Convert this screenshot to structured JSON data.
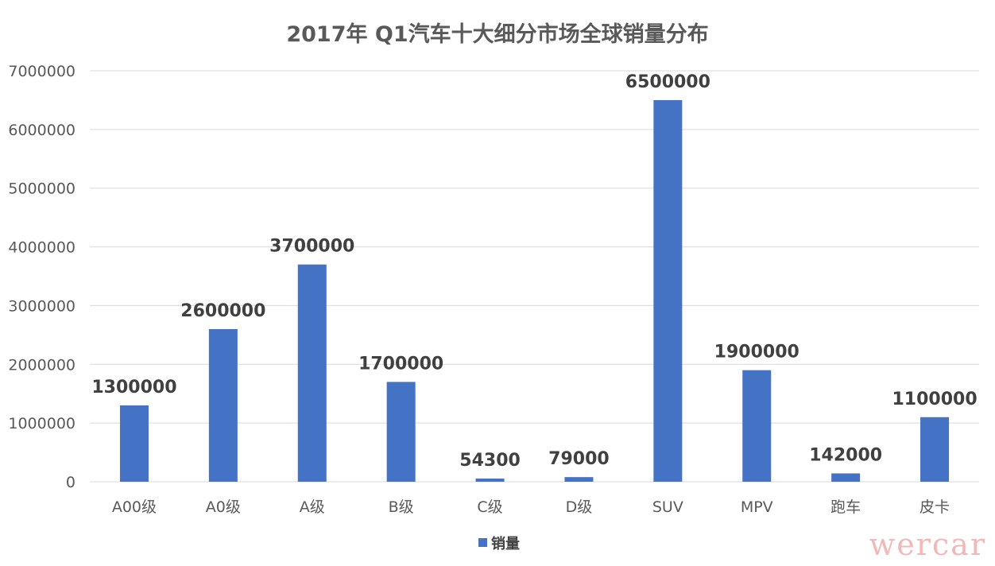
{
  "chart_data": {
    "type": "bar",
    "title": "2017年 Q1汽车十大细分市场全球销量分布",
    "categories": [
      "A00级",
      "A0级",
      "A级",
      "B级",
      "C级",
      "D级",
      "SUV",
      "MPV",
      "跑车",
      "皮卡"
    ],
    "series": [
      {
        "name": "销量",
        "values": [
          1300000,
          2600000,
          3700000,
          1700000,
          54300,
          79000,
          6500000,
          1900000,
          142000,
          1100000
        ],
        "labels": [
          "1300000",
          "2600000",
          "3700000",
          "1700000",
          "54300",
          "79000",
          "6500000",
          "1900000",
          "142000",
          "1100000"
        ],
        "color": "#4472c4"
      }
    ],
    "yticks": [
      "0",
      "1000000",
      "2000000",
      "3000000",
      "4000000",
      "5000000",
      "6000000",
      "7000000"
    ],
    "ylim": [
      0,
      7000000
    ],
    "xlabel": "",
    "ylabel": "",
    "grid": true,
    "legend_position": "bottom"
  },
  "watermark": "wercar"
}
